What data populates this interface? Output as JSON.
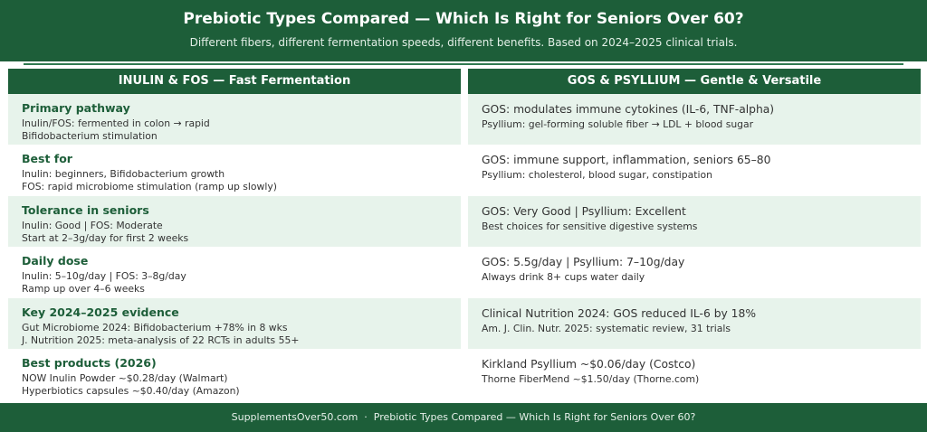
{
  "header": {
    "title": "Prebiotic Types Compared — Which Is Right for Seniors Over 60?",
    "subtitle": "Different fibers, different fermentation speeds, different benefits. Based on 2024–2025 clinical trials."
  },
  "columns": [
    {
      "heading": "INULIN & FOS — Fast Fermentation",
      "rows": [
        {
          "label": "Primary pathway",
          "lines": [
            "Inulin/FOS: fermented in colon → rapid",
            "Bifidobacterium stimulation"
          ]
        },
        {
          "label": "Best for",
          "lines": [
            "Inulin: beginners, Bifidobacterium growth",
            "FOS: rapid microbiome stimulation (ramp up slowly)"
          ]
        },
        {
          "label": "Tolerance in seniors",
          "lines": [
            "Inulin: Good  |  FOS: Moderate",
            "Start at 2–3g/day for first 2 weeks"
          ]
        },
        {
          "label": "Daily dose",
          "lines": [
            "Inulin: 5–10g/day  |  FOS: 3–8g/day",
            "Ramp up over 4–6 weeks"
          ]
        },
        {
          "label": "Key 2024–2025 evidence",
          "lines": [
            "Gut Microbiome 2024: Bifidobacterium +78% in 8 wks",
            "J. Nutrition 2025: meta-analysis of 22 RCTs in adults 55+"
          ]
        },
        {
          "label": "Best products (2026)",
          "lines": [
            "NOW Inulin Powder ~$0.28/day (Walmart)",
            "Hyperbiotics capsules ~$0.40/day (Amazon)"
          ]
        }
      ]
    },
    {
      "heading": "GOS & PSYLLIUM — Gentle & Versatile",
      "rows": [
        {
          "lines": [
            "GOS: modulates immune cytokines (IL-6, TNF-alpha)",
            "Psyllium: gel-forming soluble fiber → LDL + blood sugar"
          ]
        },
        {
          "lines": [
            "GOS: immune support, inflammation, seniors 65–80",
            "Psyllium: cholesterol, blood sugar, constipation"
          ]
        },
        {
          "lines": [
            "GOS: Very Good  |  Psyllium: Excellent",
            "Best choices for sensitive digestive systems"
          ]
        },
        {
          "lines": [
            "GOS: 5.5g/day  |  Psyllium: 7–10g/day",
            "Always drink 8+ cups water daily"
          ]
        },
        {
          "lines": [
            "Clinical Nutrition 2024: GOS reduced IL-6 by 18%",
            "Am. J. Clin. Nutr. 2025: systematic review, 31 trials"
          ]
        },
        {
          "lines": [
            "Kirkland Psyllium ~$0.06/day (Costco)",
            "Thorne FiberMend ~$1.50/day (Thorne.com)"
          ]
        }
      ]
    }
  ],
  "footer": "SupplementsOver50.com  ·  Prebiotic Types Compared — Which Is Right for Seniors Over 60?"
}
